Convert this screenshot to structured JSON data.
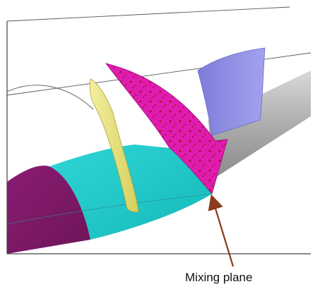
{
  "annotation": {
    "label": "Mixing plane"
  },
  "colors": {
    "outer_duct": "#8c8c8c",
    "rotor_domain": "#7d1a66",
    "mixing_domain": "#1fc9c9",
    "mixing_plane_surface": "#e01cb0",
    "stator_blade": "#e6e07a",
    "rotor_blade": "#8a8ae0",
    "arrow": "#8b3a1a"
  }
}
